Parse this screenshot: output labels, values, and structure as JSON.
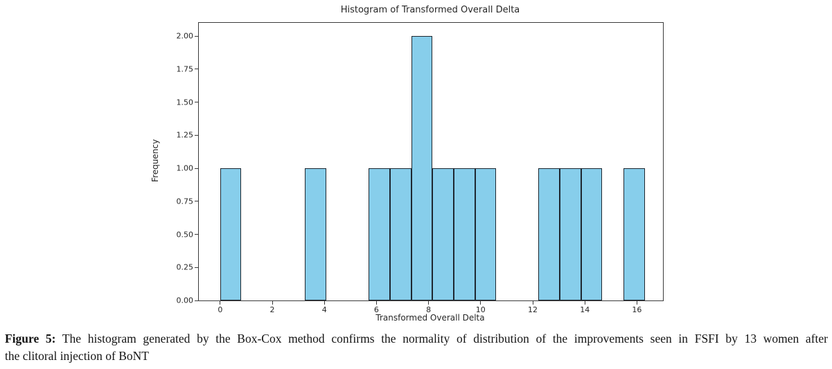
{
  "chart_data": {
    "type": "bar",
    "subtype": "histogram",
    "title": "Histogram of Transformed Overall Delta",
    "xlabel": "Transformed Overall Delta",
    "ylabel": "Frequency",
    "xlim": [
      -0.82,
      17.0
    ],
    "ylim": [
      0,
      2.1
    ],
    "grid": false,
    "legend": "none",
    "bar_color": "#87ceeb",
    "bar_edge_color": "#1e2730",
    "bins": [
      {
        "x0": 0.0,
        "x1": 0.815,
        "count": 1
      },
      {
        "x0": 3.26,
        "x1": 4.075,
        "count": 1
      },
      {
        "x0": 5.705,
        "x1": 6.52,
        "count": 1
      },
      {
        "x0": 6.52,
        "x1": 7.335,
        "count": 1
      },
      {
        "x0": 7.335,
        "x1": 8.15,
        "count": 2
      },
      {
        "x0": 8.15,
        "x1": 8.965,
        "count": 1
      },
      {
        "x0": 8.965,
        "x1": 9.78,
        "count": 1
      },
      {
        "x0": 9.78,
        "x1": 10.595,
        "count": 1
      },
      {
        "x0": 12.225,
        "x1": 13.04,
        "count": 1
      },
      {
        "x0": 13.04,
        "x1": 13.855,
        "count": 1
      },
      {
        "x0": 13.855,
        "x1": 14.67,
        "count": 1
      },
      {
        "x0": 15.485,
        "x1": 16.3,
        "count": 1
      }
    ],
    "xticks": [
      {
        "v": 0,
        "label": "0"
      },
      {
        "v": 2,
        "label": "2"
      },
      {
        "v": 4,
        "label": "4"
      },
      {
        "v": 6,
        "label": "6"
      },
      {
        "v": 8,
        "label": "8"
      },
      {
        "v": 10,
        "label": "10"
      },
      {
        "v": 12,
        "label": "12"
      },
      {
        "v": 14,
        "label": "14"
      },
      {
        "v": 16,
        "label": "16"
      }
    ],
    "yticks": [
      {
        "v": 0.0,
        "label": "0.00"
      },
      {
        "v": 0.25,
        "label": "0.25"
      },
      {
        "v": 0.5,
        "label": "0.50"
      },
      {
        "v": 0.75,
        "label": "0.75"
      },
      {
        "v": 1.0,
        "label": "1.00"
      },
      {
        "v": 1.25,
        "label": "1.25"
      },
      {
        "v": 1.5,
        "label": "1.50"
      },
      {
        "v": 1.75,
        "label": "1.75"
      },
      {
        "v": 2.0,
        "label": "2.00"
      }
    ]
  },
  "caption": {
    "prefix": "Figure 5:",
    "line1_rest": " The histogram generated by the Box-Cox method confirms the normality of distribution of the improvements seen in FSFI by 13 women after",
    "line2": "the clitoral injection of BoNT"
  }
}
